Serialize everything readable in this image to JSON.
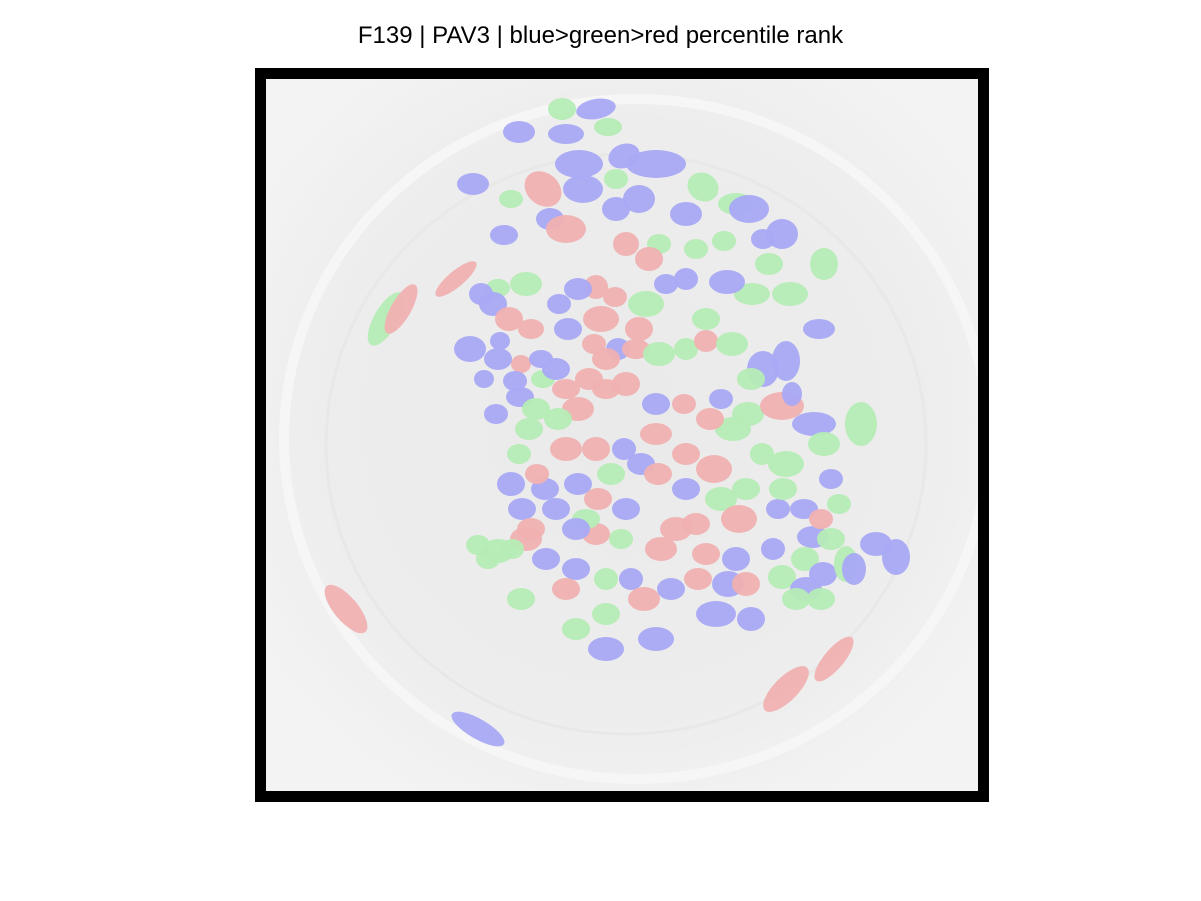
{
  "figure": {
    "title": "F139 | PAV3 | blue>green>red percentile rank"
  },
  "image": {
    "description_colors": {
      "background": "#eeeeee",
      "frame": "#000000",
      "blue": "#a9a9f5",
      "green": "#b5ecb5",
      "red": "#f0b1b1"
    },
    "legend_order": [
      "blue",
      "green",
      "red"
    ]
  }
}
